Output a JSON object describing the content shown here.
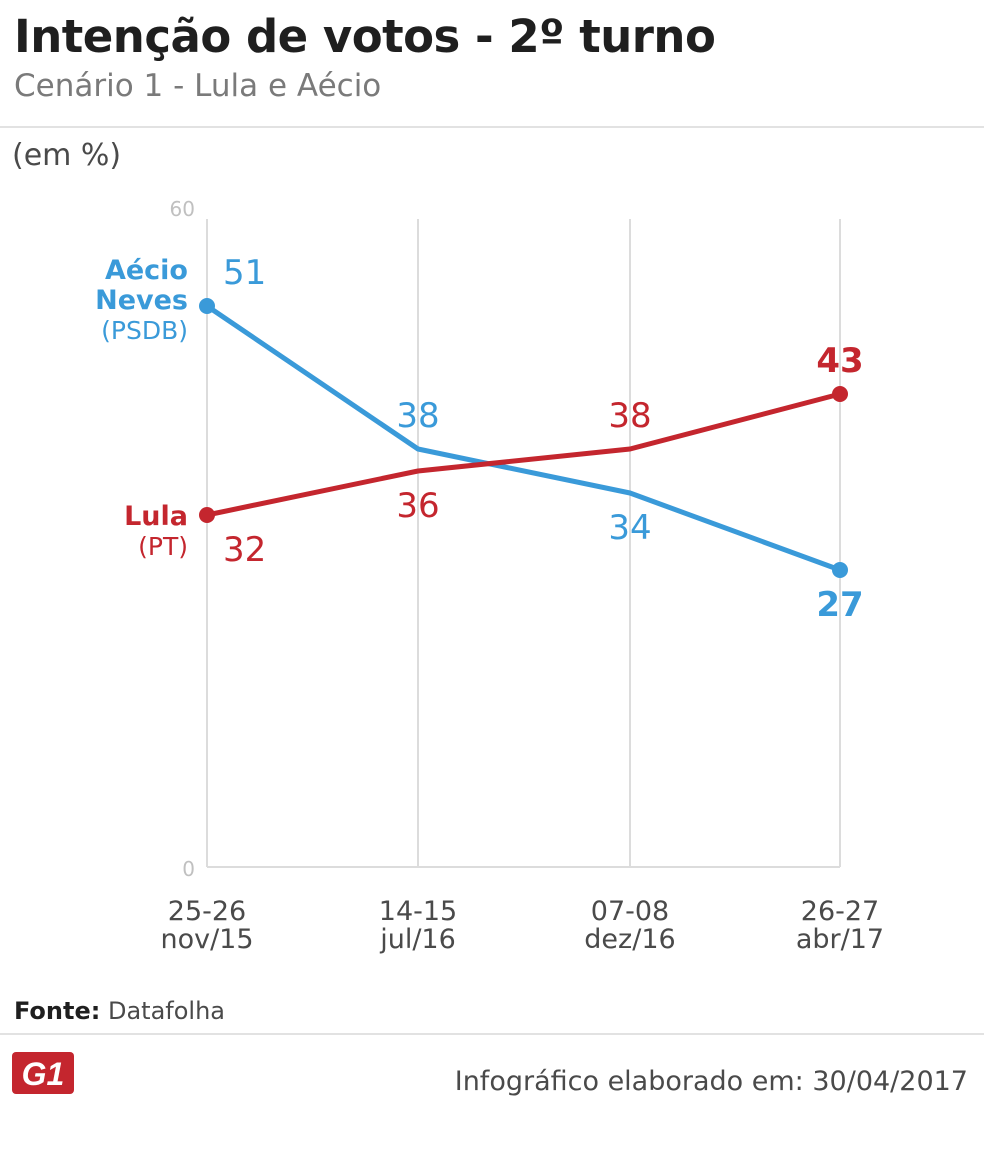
{
  "header": {
    "title": "Intenção de votos - 2º turno",
    "subtitle": "Cenário 1 - Lula e Aécio",
    "unit": "(em %)"
  },
  "chart_data": {
    "type": "line",
    "title": "Intenção de votos - 2º turno",
    "subtitle": "Cenário 1 - Lula e Aécio",
    "ylabel": "(em %)",
    "ylim": [
      0,
      60
    ],
    "yticks": [
      0,
      60
    ],
    "categories": [
      {
        "line1": "25-26",
        "line2": "nov/15"
      },
      {
        "line1": "14-15",
        "line2": "jul/16"
      },
      {
        "line1": "07-08",
        "line2": "dez/16"
      },
      {
        "line1": "26-27",
        "line2": "abr/17"
      }
    ],
    "series": [
      {
        "id": "aecio",
        "name_line1": "Aécio",
        "name_line2": "Neves",
        "party": "(PSDB)",
        "color": "#3a9ad9",
        "values": [
          51,
          38,
          34,
          27
        ],
        "label_pos": [
          "above",
          "above",
          "below",
          "below"
        ]
      },
      {
        "id": "lula",
        "name_line1": "Lula",
        "name_line2": "",
        "party": "(PT)",
        "color": "#c4262e",
        "values": [
          32,
          36,
          38,
          43
        ],
        "label_pos": [
          "below",
          "below",
          "above",
          "above"
        ]
      }
    ]
  },
  "footer": {
    "source_label": "Fonte:",
    "source_value": "Datafolha",
    "logo_text": "G1",
    "credit": "Infográfico elaborado em: 30/04/2017"
  },
  "colors": {
    "grid": "#dcdcdc",
    "axis_text": "#c0c0c0",
    "tick_text": "#4a4a4a",
    "logo": "#c4262e"
  }
}
